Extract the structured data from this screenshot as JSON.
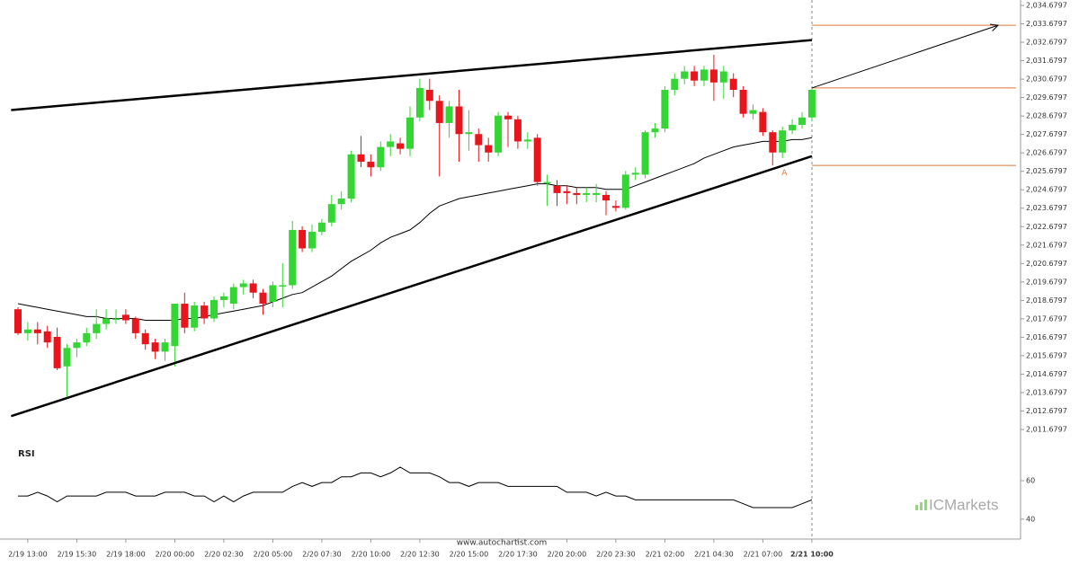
{
  "chart_data": {
    "type": "candlestick",
    "up_color": "#33d633",
    "down_color": "#e8161c",
    "candles": [
      [
        2018.2,
        2018.3,
        2016.8,
        2016.9
      ],
      [
        2016.9,
        2017.5,
        2016.5,
        2017.1
      ],
      [
        2017.1,
        2017.5,
        2016.3,
        2016.9
      ],
      [
        2017.0,
        2017.3,
        2016.1,
        2016.4
      ],
      [
        2016.7,
        2017.2,
        2014.9,
        2015.0
      ],
      [
        2015.1,
        2016.3,
        2013.4,
        2016.1
      ],
      [
        2016.1,
        2016.6,
        2015.6,
        2016.4
      ],
      [
        2016.4,
        2017.2,
        2016.2,
        2016.9
      ],
      [
        2016.9,
        2018.2,
        2016.6,
        2017.4
      ],
      [
        2017.4,
        2018.2,
        2017.1,
        2017.7
      ],
      [
        2017.7,
        2018.2,
        2017.4,
        2017.7
      ],
      [
        2017.9,
        2018.2,
        2017.4,
        2017.6
      ],
      [
        2017.7,
        2017.8,
        2016.6,
        2016.9
      ],
      [
        2016.9,
        2017.1,
        2016.0,
        2016.3
      ],
      [
        2016.4,
        2016.6,
        2015.5,
        2015.9
      ],
      [
        2015.9,
        2016.6,
        2015.4,
        2016.4
      ],
      [
        2016.2,
        2018.5,
        2015.1,
        2018.5
      ],
      [
        2018.5,
        2019.1,
        2016.9,
        2017.2
      ],
      [
        2017.2,
        2018.6,
        2017.0,
        2018.4
      ],
      [
        2018.4,
        2018.6,
        2017.4,
        2017.7
      ],
      [
        2017.7,
        2018.9,
        2017.5,
        2018.7
      ],
      [
        2018.7,
        2019.1,
        2018.3,
        2018.9
      ],
      [
        2018.5,
        2019.6,
        2018.2,
        2019.4
      ],
      [
        2019.4,
        2019.8,
        2019.0,
        2019.6
      ],
      [
        2019.6,
        2019.8,
        2018.8,
        2019.1
      ],
      [
        2019.1,
        2019.3,
        2017.9,
        2018.5
      ],
      [
        2018.6,
        2019.7,
        2018.3,
        2019.5
      ],
      [
        2019.5,
        2020.7,
        2018.3,
        2019.5
      ],
      [
        2019.5,
        2023.0,
        2019.3,
        2022.5
      ],
      [
        2022.5,
        2022.7,
        2021.3,
        2021.5
      ],
      [
        2021.5,
        2022.8,
        2021.3,
        2022.4
      ],
      [
        2022.4,
        2023.1,
        2022.2,
        2022.9
      ],
      [
        2022.9,
        2024.4,
        2022.7,
        2023.9
      ],
      [
        2023.9,
        2024.6,
        2023.6,
        2024.2
      ],
      [
        2024.2,
        2026.8,
        2024.0,
        2026.6
      ],
      [
        2026.6,
        2027.6,
        2025.9,
        2026.2
      ],
      [
        2026.2,
        2026.6,
        2025.4,
        2025.9
      ],
      [
        2025.9,
        2027.3,
        2025.7,
        2027.0
      ],
      [
        2027.0,
        2027.7,
        2026.5,
        2027.3
      ],
      [
        2027.2,
        2027.5,
        2026.6,
        2026.9
      ],
      [
        2026.9,
        2029.2,
        2026.5,
        2028.6
      ],
      [
        2028.6,
        2030.7,
        2028.4,
        2030.2
      ],
      [
        2030.1,
        2030.7,
        2029.0,
        2029.5
      ],
      [
        2029.5,
        2029.8,
        2025.4,
        2028.3
      ],
      [
        2028.3,
        2029.5,
        2027.5,
        2029.2
      ],
      [
        2029.2,
        2030.1,
        2026.2,
        2027.7
      ],
      [
        2027.7,
        2029.0,
        2026.8,
        2027.8
      ],
      [
        2027.7,
        2028.0,
        2026.2,
        2027.1
      ],
      [
        2027.1,
        2027.5,
        2026.2,
        2026.7
      ],
      [
        2026.7,
        2028.9,
        2026.5,
        2028.7
      ],
      [
        2028.7,
        2028.9,
        2027.0,
        2028.5
      ],
      [
        2028.5,
        2028.7,
        2026.9,
        2027.3
      ],
      [
        2027.3,
        2027.8,
        2026.9,
        2027.4
      ],
      [
        2027.5,
        2027.7,
        2024.9,
        2025.1
      ],
      [
        2025.1,
        2025.5,
        2023.8,
        2025.1
      ],
      [
        2024.9,
        2025.2,
        2023.8,
        2024.5
      ],
      [
        2024.6,
        2024.9,
        2023.9,
        2024.5
      ],
      [
        2024.5,
        2024.8,
        2023.9,
        2024.4
      ],
      [
        2024.4,
        2024.8,
        2024.0,
        2024.5
      ],
      [
        2024.4,
        2025.0,
        2024.0,
        2024.5
      ],
      [
        2024.4,
        2024.6,
        2023.3,
        2024.1
      ],
      [
        2023.8,
        2024.1,
        2023.5,
        2023.7
      ],
      [
        2023.7,
        2025.7,
        2023.6,
        2025.5
      ],
      [
        2025.5,
        2025.9,
        2025.2,
        2025.6
      ],
      [
        2025.5,
        2027.9,
        2025.3,
        2027.8
      ],
      [
        2027.8,
        2028.3,
        2027.5,
        2028.0
      ],
      [
        2028.0,
        2030.3,
        2027.8,
        2030.1
      ],
      [
        2030.1,
        2031.0,
        2029.8,
        2030.7
      ],
      [
        2030.7,
        2031.4,
        2030.4,
        2031.1
      ],
      [
        2031.1,
        2031.4,
        2030.3,
        2030.6
      ],
      [
        2030.6,
        2031.4,
        2030.3,
        2031.2
      ],
      [
        2031.2,
        2032.0,
        2029.5,
        2030.5
      ],
      [
        2030.5,
        2031.4,
        2029.6,
        2031.1
      ],
      [
        2030.7,
        2031.0,
        2029.7,
        2030.1
      ],
      [
        2030.1,
        2030.3,
        2028.6,
        2028.8
      ],
      [
        2028.8,
        2029.3,
        2028.5,
        2029.0
      ],
      [
        2028.9,
        2029.1,
        2027.6,
        2027.8
      ],
      [
        2027.8,
        2027.9,
        2026.0,
        2026.7
      ],
      [
        2026.7,
        2028.1,
        2026.4,
        2027.9
      ],
      [
        2027.9,
        2028.5,
        2027.7,
        2028.2
      ],
      [
        2028.2,
        2028.9,
        2028.0,
        2028.6
      ],
      [
        2028.6,
        2030.2,
        2028.4,
        2030.1
      ]
    ],
    "moving_average": {
      "color": "#000000",
      "values": [
        2018.5,
        2018.4,
        2018.3,
        2018.2,
        2018.1,
        2018.0,
        2017.9,
        2017.8,
        2017.8,
        2017.7,
        2017.7,
        2017.7,
        2017.7,
        2017.6,
        2017.6,
        2017.6,
        2017.6,
        2017.7,
        2017.7,
        2017.8,
        2017.9,
        2018.0,
        2018.1,
        2018.2,
        2018.3,
        2018.4,
        2018.6,
        2018.8,
        2019.0,
        2019.1,
        2019.4,
        2019.7,
        2020.0,
        2020.4,
        2020.8,
        2021.1,
        2021.4,
        2021.8,
        2022.1,
        2022.3,
        2022.5,
        2022.9,
        2023.4,
        2023.8,
        2024.0,
        2024.2,
        2024.3,
        2024.4,
        2024.5,
        2024.6,
        2024.7,
        2024.8,
        2024.9,
        2025.0,
        2025.0,
        2024.9,
        2024.9,
        2024.8,
        2024.8,
        2024.8,
        2024.7,
        2024.7,
        2024.7,
        2024.9,
        2025.1,
        2025.3,
        2025.5,
        2025.7,
        2025.9,
        2026.1,
        2026.4,
        2026.6,
        2026.8,
        2027.0,
        2027.1,
        2027.2,
        2027.3,
        2027.3,
        2027.3,
        2027.4,
        2027.4,
        2027.5
      ]
    },
    "ylim": [
      2011.6797,
      2034.6797
    ],
    "yticks": [
      {
        "value": 2011.6797,
        "label": "2,011.6797"
      },
      {
        "value": 2012.6797,
        "label": "2,012.6797"
      },
      {
        "value": 2013.6797,
        "label": "2,013.6797"
      },
      {
        "value": 2014.6797,
        "label": "2,014.6797"
      },
      {
        "value": 2015.6797,
        "label": "2,015.6797"
      },
      {
        "value": 2016.6797,
        "label": "2,016.6797"
      },
      {
        "value": 2017.6797,
        "label": "2,017.6797"
      },
      {
        "value": 2018.6797,
        "label": "2,018.6797"
      },
      {
        "value": 2019.6797,
        "label": "2,019.6797"
      },
      {
        "value": 2020.6797,
        "label": "2,020.6797"
      },
      {
        "value": 2021.6797,
        "label": "2,021.6797"
      },
      {
        "value": 2022.6797,
        "label": "2,022.6797"
      },
      {
        "value": 2023.6797,
        "label": "2,023.6797"
      },
      {
        "value": 2024.6797,
        "label": "2,024.6797"
      },
      {
        "value": 2025.6797,
        "label": "2,025.6797"
      },
      {
        "value": 2026.6797,
        "label": "2,026.6797"
      },
      {
        "value": 2027.6797,
        "label": "2,027.6797"
      },
      {
        "value": 2028.6797,
        "label": "2,028.6797"
      },
      {
        "value": 2029.6797,
        "label": "2,029.6797"
      },
      {
        "value": 2030.6797,
        "label": "2,030.6797"
      },
      {
        "value": 2031.6797,
        "label": "2,031.6797"
      },
      {
        "value": 2032.6797,
        "label": "2,032.6797"
      },
      {
        "value": 2033.6797,
        "label": "2,033.6797"
      },
      {
        "value": 2034.6797,
        "label": "2,034.6797"
      }
    ],
    "xticks": [
      {
        "value": 1,
        "label": "2/19 13:00"
      },
      {
        "value": 6,
        "label": "2/19 15:30"
      },
      {
        "value": 11,
        "label": "2/19 18:00"
      },
      {
        "value": 16,
        "label": "2/20 00:00"
      },
      {
        "value": 21,
        "label": "2/20 02:30"
      },
      {
        "value": 26,
        "label": "2/20 05:00"
      },
      {
        "value": 31,
        "label": "2/20 07:30"
      },
      {
        "value": 36,
        "label": "2/20 10:00"
      },
      {
        "value": 41,
        "label": "2/20 12:30"
      },
      {
        "value": 46,
        "label": "2/20 15:00"
      },
      {
        "value": 51,
        "label": "2/20 17:30"
      },
      {
        "value": 56,
        "label": "2/20 20:00"
      },
      {
        "value": 61,
        "label": "2/20 23:30"
      },
      {
        "value": 66,
        "label": "2/21 02:00"
      },
      {
        "value": 71,
        "label": "2/21 04:30"
      },
      {
        "value": 76,
        "label": "2/21 07:00"
      },
      {
        "value": 81,
        "label": "2/21 10:00"
      }
    ],
    "trendlines": [
      {
        "color": "#000000",
        "x": [
          -0.7,
          81
        ],
        "y": [
          2029.0,
          2032.8
        ]
      },
      {
        "color": "#000000",
        "x": [
          -0.7,
          81
        ],
        "y": [
          2012.4,
          2026.5
        ]
      }
    ],
    "levels": {
      "color": "#e07b39",
      "values": [
        2033.6,
        2030.2,
        2026.0
      ]
    },
    "forecast_arrow": {
      "color": "#000000",
      "x": [
        81,
        100
      ],
      "y": [
        2030.2,
        2033.6
      ]
    },
    "pattern_label": {
      "text": "A",
      "x": 78.2,
      "y": 2025.6
    },
    "rsi": {
      "label": "RSI",
      "ylim": [
        32,
        74
      ],
      "yticks": [
        40,
        60
      ],
      "values": [
        52,
        52,
        54,
        52,
        49,
        52,
        52,
        52,
        52,
        54,
        54,
        54,
        52,
        52,
        52,
        54,
        54,
        54,
        52,
        52,
        49,
        52,
        49,
        52,
        54,
        54,
        54,
        54,
        57,
        59,
        57,
        59,
        59,
        62,
        62,
        64,
        64,
        62,
        64,
        67,
        64,
        64,
        64,
        62,
        59,
        59,
        57,
        59,
        59,
        59,
        57,
        57,
        57,
        57,
        57,
        57,
        54,
        54,
        54,
        52,
        54,
        52,
        52,
        50,
        50,
        50,
        50,
        50,
        50,
        50,
        50,
        50,
        50,
        50,
        48,
        46,
        46,
        46,
        46,
        46,
        48,
        50
      ]
    },
    "watermark": "www.autochartist.com",
    "logo": "ICMarkets"
  }
}
